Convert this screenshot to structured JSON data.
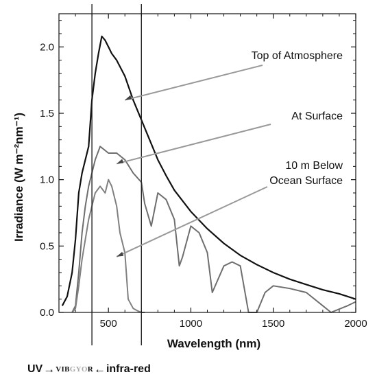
{
  "chart_data": {
    "type": "line",
    "title": "",
    "xlabel": "Wavelength (nm)",
    "ylabel": "Irradiance (W m⁻²nm⁻¹)",
    "xlim": [
      200,
      2000
    ],
    "ylim": [
      0.0,
      2.25
    ],
    "x_ticks": [
      500,
      1000,
      1500,
      2000
    ],
    "x_tick_labels": [
      "500",
      "1000",
      "1500",
      "2000"
    ],
    "y_ticks": [
      0.0,
      0.5,
      1.0,
      1.5,
      2.0
    ],
    "y_tick_labels": [
      "0.0",
      "0.5",
      "1.0",
      "1.5",
      "2.0"
    ],
    "grid": false,
    "vertical_lines_nm": [
      400,
      700
    ],
    "series": [
      {
        "name": "Top of Atmosphere",
        "color": "#111111",
        "x": [
          220,
          250,
          280,
          300,
          320,
          340,
          360,
          380,
          400,
          420,
          440,
          460,
          480,
          500,
          520,
          550,
          600,
          650,
          700,
          750,
          800,
          850,
          900,
          950,
          1000,
          1100,
          1200,
          1300,
          1400,
          1500,
          1600,
          1700,
          1800,
          1900,
          2000
        ],
        "y": [
          0.05,
          0.12,
          0.3,
          0.55,
          0.9,
          1.05,
          1.15,
          1.25,
          1.6,
          1.8,
          1.95,
          2.08,
          2.05,
          2.0,
          1.95,
          1.9,
          1.78,
          1.6,
          1.45,
          1.3,
          1.15,
          1.03,
          0.92,
          0.84,
          0.76,
          0.63,
          0.52,
          0.43,
          0.36,
          0.3,
          0.25,
          0.21,
          0.17,
          0.14,
          0.1
        ]
      },
      {
        "name": "At Surface",
        "color": "#6e6e6e",
        "x": [
          280,
          300,
          320,
          340,
          360,
          380,
          400,
          420,
          450,
          480,
          500,
          550,
          600,
          650,
          700,
          720,
          760,
          800,
          850,
          900,
          930,
          950,
          1000,
          1050,
          1100,
          1130,
          1200,
          1250,
          1300,
          1350,
          1400,
          1450,
          1500,
          1600,
          1700,
          1800,
          1850,
          1950,
          2000
        ],
        "y": [
          0.0,
          0.05,
          0.3,
          0.6,
          0.8,
          0.95,
          1.05,
          1.15,
          1.25,
          1.22,
          1.2,
          1.2,
          1.15,
          1.05,
          0.98,
          0.82,
          0.65,
          0.9,
          0.85,
          0.7,
          0.35,
          0.42,
          0.65,
          0.6,
          0.45,
          0.15,
          0.35,
          0.38,
          0.35,
          0.0,
          0.0,
          0.15,
          0.2,
          0.18,
          0.15,
          0.05,
          0.0,
          0.05,
          0.08
        ]
      },
      {
        "name": "10 m Below Ocean Surface",
        "color": "#808080",
        "x": [
          280,
          300,
          320,
          340,
          360,
          380,
          400,
          420,
          450,
          480,
          500,
          520,
          550,
          570,
          600,
          620,
          650,
          680,
          700,
          720
        ],
        "y": [
          0.0,
          0.03,
          0.2,
          0.4,
          0.55,
          0.7,
          0.8,
          0.9,
          0.95,
          0.9,
          1.0,
          0.95,
          0.8,
          0.6,
          0.45,
          0.1,
          0.03,
          0.01,
          0.0,
          0.0
        ]
      }
    ],
    "annotations": [
      {
        "text": "Top of Atmosphere",
        "x": 600,
        "y": 1.6
      },
      {
        "text": "At Surface",
        "x": 550,
        "y": 1.12
      },
      {
        "text": "10 m Below",
        "x": 550,
        "y": 0.42
      },
      {
        "text": "Ocean Surface",
        "x": 550,
        "y": 0.42
      }
    ]
  },
  "spectrum_legend": {
    "left_label": "UV",
    "right_label": "infra-red",
    "arrow_right": "→",
    "arrow_left": "←",
    "vibgyor": "VIBGYOR"
  }
}
